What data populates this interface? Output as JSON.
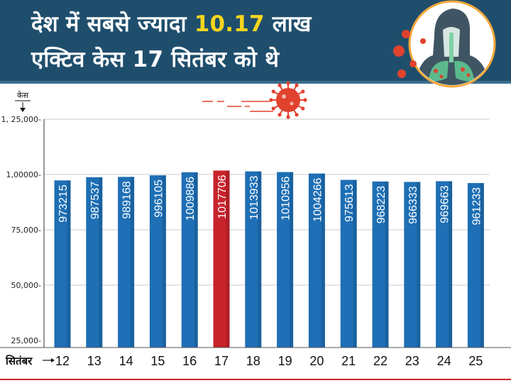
{
  "header": {
    "line1_pre": "देश में सबसे ज्यादा ",
    "line1_highlight": "10.17",
    "line1_post": " लाख",
    "line2": "एक्टिव केस 17 सितंबर को थे"
  },
  "colors": {
    "header_bg": "#1f4e6d",
    "highlight": "#f7d51d",
    "bar": "#1e6fb5",
    "bar_peak": "#c8232c",
    "virus": "#e0422e"
  },
  "icons": [
    "virus-icon",
    "human-lungs-icon"
  ],
  "chart_data": {
    "type": "bar",
    "title": "",
    "ylabel": "केस",
    "xlabel": "सितंबर",
    "ylim": [
      25000,
      125000
    ],
    "yticks": [
      25000,
      50000,
      75000,
      100000,
      125000
    ],
    "ytick_labels": [
      "25,000-",
      "50,000-",
      "75,000-",
      "1,00000-",
      "1, 25,000-"
    ],
    "categories": [
      "12",
      "13",
      "14",
      "15",
      "16",
      "17",
      "18",
      "19",
      "20",
      "21",
      "22",
      "23",
      "24",
      "25"
    ],
    "values": [
      973215,
      987537,
      989168,
      996105,
      1009886,
      1017706,
      1013933,
      1010956,
      1004266,
      975613,
      968223,
      966333,
      969663,
      961233
    ],
    "value_labels": [
      "973215",
      "987537",
      "989168",
      "996105",
      "1009886",
      "1017706",
      "1013933",
      "1010956",
      "1004266",
      "975613",
      "968223",
      "966333",
      "969663",
      "961233"
    ],
    "highlight_index": 5
  }
}
